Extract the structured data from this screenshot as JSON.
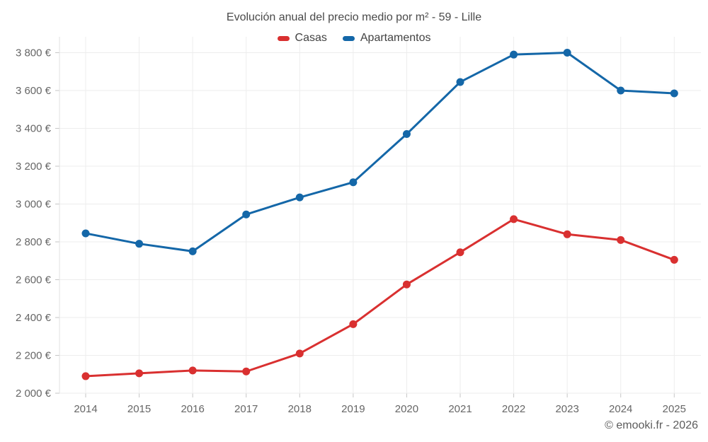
{
  "header": {
    "title": "Evolución anual del precio medio por m² - 59 - Lille"
  },
  "footer": {
    "credit": "© emooki.fr - 2026"
  },
  "colors": {
    "casas": "#d93030",
    "apartamentos": "#1467a8",
    "gridline": "#ededed",
    "axis": "#e2e2e2",
    "tick": "#c6c6c6",
    "label": "#666666"
  },
  "chart_data": {
    "type": "line",
    "title": "Evolución anual del precio medio por m² - 59 - Lille",
    "categories": [
      "2014",
      "2015",
      "2016",
      "2017",
      "2018",
      "2019",
      "2020",
      "2021",
      "2022",
      "2023",
      "2024",
      "2025"
    ],
    "series": [
      {
        "name": "Casas",
        "color": "#d93030",
        "values": [
          2090,
          2105,
          2120,
          2115,
          2210,
          2365,
          2575,
          2745,
          2920,
          2840,
          2810,
          2705
        ]
      },
      {
        "name": "Apartamentos",
        "color": "#1467a8",
        "values": [
          2845,
          2790,
          2750,
          2945,
          3035,
          3115,
          3370,
          3645,
          3790,
          3800,
          3600,
          3585
        ]
      }
    ],
    "xlabel": "",
    "ylabel": "",
    "ylim": [
      2000,
      3880
    ],
    "y_ticks": [
      {
        "value": 2000,
        "label": "2 000 €"
      },
      {
        "value": 2200,
        "label": "2 200 €"
      },
      {
        "value": 2400,
        "label": "2 400 €"
      },
      {
        "value": 2600,
        "label": "2 600 €"
      },
      {
        "value": 2800,
        "label": "2 800 €"
      },
      {
        "value": 3000,
        "label": "3 000 €"
      },
      {
        "value": 3200,
        "label": "3 200 €"
      },
      {
        "value": 3400,
        "label": "3 400 €"
      },
      {
        "value": 3600,
        "label": "3 600 €"
      },
      {
        "value": 3800,
        "label": "3 800 €"
      }
    ],
    "grid": true,
    "legend_position": "top",
    "annotation": "© emooki.fr - 2026"
  }
}
